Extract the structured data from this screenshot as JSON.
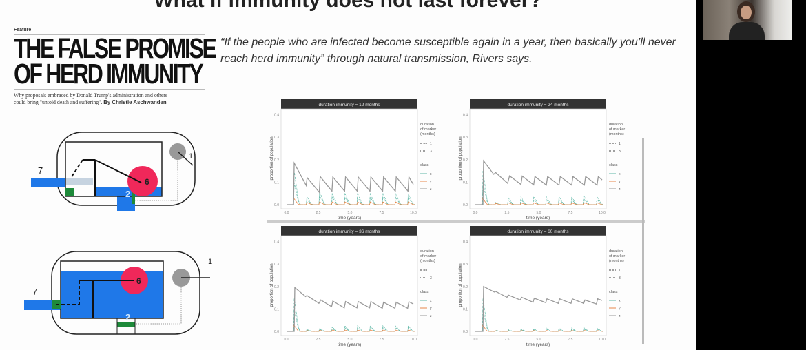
{
  "slide": {
    "title": "What if immunity does not last forever?",
    "article": {
      "kicker": "Feature",
      "headline_line1": "THE FALSE PROMISE",
      "headline_line2": "OF HERD IMMUNITY",
      "subtitle_line1": "Why proposals embraced by Donald Trump's administration and others",
      "subtitle_line2": "could bring \"untold death and suffering\".",
      "byline": "By Christie Aschwanden"
    },
    "quote": "“If the people who are infected become susceptible again in a year, then basically you’ll never reach herd immunity” through natural transmission, Rivers says.",
    "diagram_labels": {
      "pipe": "7",
      "float": "6",
      "valve": "1",
      "outlet": "2"
    },
    "colors": {
      "water": "#1f78e8",
      "float": "#f0285a",
      "valve": "#999999",
      "seal": "#1e8a3a"
    }
  },
  "video": {
    "participant": "presenter webcam"
  },
  "chart_legend": {
    "marker_title": [
      "duration",
      "of marker",
      "(months)"
    ],
    "marker_items": [
      "1",
      "3"
    ],
    "class_title": "class",
    "class_items": [
      "x",
      "y",
      "z"
    ],
    "class_colors": {
      "x": "#5fb8a8",
      "y": "#e8884a",
      "z": "#999999"
    }
  },
  "chart_data": [
    {
      "type": "line",
      "title": "duration immunity = 12 months",
      "xlabel": "time (years)",
      "ylabel": "proportion of population",
      "xlim": [
        0,
        10
      ],
      "ylim": [
        0,
        0.42
      ],
      "xticks": [
        "0.0",
        "2.5",
        "5.0",
        "7.5",
        "10.0"
      ],
      "yticks": [
        "0.0",
        "0.1",
        "0.2",
        "0.3",
        "0.4"
      ],
      "z": [
        [
          0,
          0
        ],
        [
          0.55,
          0
        ],
        [
          0.6,
          0.185
        ],
        [
          1.55,
          0.085
        ],
        [
          1.62,
          0.12
        ],
        [
          2.58,
          0.055
        ],
        [
          2.65,
          0.125
        ],
        [
          3.58,
          0.06
        ],
        [
          3.65,
          0.123
        ],
        [
          4.58,
          0.06
        ],
        [
          4.65,
          0.123
        ],
        [
          5.58,
          0.06
        ],
        [
          5.65,
          0.123
        ],
        [
          6.58,
          0.06
        ],
        [
          6.65,
          0.123
        ],
        [
          7.58,
          0.06
        ],
        [
          7.65,
          0.123
        ],
        [
          8.58,
          0.06
        ],
        [
          8.65,
          0.123
        ],
        [
          9.58,
          0.06
        ],
        [
          9.65,
          0.123
        ],
        [
          10,
          0.09
        ]
      ],
      "x_peaks": [
        [
          0.6,
          0.15
        ],
        [
          1.6,
          0.035
        ],
        [
          2.6,
          0.06
        ],
        [
          3.6,
          0.05
        ],
        [
          4.6,
          0.05
        ],
        [
          5.6,
          0.05
        ],
        [
          6.6,
          0.05
        ],
        [
          7.6,
          0.05
        ],
        [
          8.6,
          0.05
        ],
        [
          9.6,
          0.05
        ]
      ],
      "y_peaks": [
        [
          0.55,
          0.03
        ],
        [
          1.6,
          0.01
        ],
        [
          2.6,
          0.012
        ],
        [
          3.6,
          0.012
        ],
        [
          4.6,
          0.012
        ],
        [
          5.6,
          0.012
        ],
        [
          6.6,
          0.012
        ],
        [
          7.6,
          0.012
        ],
        [
          8.6,
          0.012
        ],
        [
          9.6,
          0.012
        ]
      ]
    },
    {
      "type": "line",
      "title": "duration immunity = 24 months",
      "xlabel": "time (years)",
      "ylabel": "proportion of population",
      "xlim": [
        0,
        10
      ],
      "ylim": [
        0,
        0.42
      ],
      "xticks": [
        "0.0",
        "2.5",
        "5.0",
        "7.5",
        "10.0"
      ],
      "yticks": [
        "0.0",
        "0.1",
        "0.2",
        "0.3",
        "0.4"
      ],
      "z": [
        [
          0,
          0
        ],
        [
          0.6,
          0
        ],
        [
          0.65,
          0.195
        ],
        [
          1.45,
          0.135
        ],
        [
          1.6,
          0.143
        ],
        [
          2.55,
          0.095
        ],
        [
          2.7,
          0.128
        ],
        [
          3.6,
          0.09
        ],
        [
          3.7,
          0.127
        ],
        [
          4.6,
          0.088
        ],
        [
          4.7,
          0.125
        ],
        [
          5.6,
          0.087
        ],
        [
          5.7,
          0.125
        ],
        [
          6.6,
          0.087
        ],
        [
          6.7,
          0.125
        ],
        [
          7.6,
          0.087
        ],
        [
          7.7,
          0.125
        ],
        [
          8.6,
          0.087
        ],
        [
          8.7,
          0.125
        ],
        [
          9.6,
          0.087
        ],
        [
          9.7,
          0.125
        ],
        [
          10,
          0.11
        ]
      ],
      "x_peaks": [
        [
          0.6,
          0.15
        ],
        [
          1.6,
          0.01
        ],
        [
          2.6,
          0.03
        ],
        [
          3.6,
          0.035
        ],
        [
          4.6,
          0.035
        ],
        [
          5.6,
          0.035
        ],
        [
          6.6,
          0.035
        ],
        [
          7.6,
          0.035
        ],
        [
          8.6,
          0.035
        ],
        [
          9.6,
          0.035
        ]
      ],
      "y_peaks": [
        [
          0.55,
          0.03
        ],
        [
          1.6,
          0.005
        ],
        [
          2.6,
          0.008
        ],
        [
          3.6,
          0.008
        ],
        [
          4.6,
          0.008
        ],
        [
          5.6,
          0.008
        ],
        [
          6.6,
          0.008
        ],
        [
          7.6,
          0.008
        ],
        [
          8.6,
          0.008
        ],
        [
          9.6,
          0.008
        ]
      ]
    },
    {
      "type": "line",
      "title": "duration immunity = 36 months",
      "xlabel": "time (years)",
      "ylabel": "proportion of population",
      "xlim": [
        0,
        10
      ],
      "ylim": [
        0,
        0.42
      ],
      "xticks": [
        "0.0",
        "2.5",
        "5.0",
        "7.5",
        "10.0"
      ],
      "yticks": [
        "0.0",
        "0.1",
        "0.2",
        "0.3",
        "0.4"
      ],
      "z": [
        [
          0,
          0
        ],
        [
          0.6,
          0
        ],
        [
          0.65,
          0.195
        ],
        [
          1.5,
          0.155
        ],
        [
          1.6,
          0.16
        ],
        [
          2.55,
          0.125
        ],
        [
          2.7,
          0.14
        ],
        [
          3.55,
          0.11
        ],
        [
          3.65,
          0.135
        ],
        [
          4.55,
          0.105
        ],
        [
          4.65,
          0.133
        ],
        [
          5.55,
          0.105
        ],
        [
          5.65,
          0.133
        ],
        [
          6.55,
          0.105
        ],
        [
          6.65,
          0.133
        ],
        [
          7.55,
          0.103
        ],
        [
          7.65,
          0.13
        ],
        [
          8.55,
          0.103
        ],
        [
          8.65,
          0.13
        ],
        [
          9.55,
          0.103
        ],
        [
          9.65,
          0.132
        ],
        [
          10,
          0.122
        ]
      ],
      "x_peaks": [
        [
          0.6,
          0.15
        ],
        [
          1.6,
          0.01
        ],
        [
          2.6,
          0.015
        ],
        [
          3.6,
          0.02
        ],
        [
          4.6,
          0.025
        ],
        [
          5.6,
          0.025
        ],
        [
          6.6,
          0.025
        ],
        [
          7.6,
          0.025
        ],
        [
          8.6,
          0.025
        ],
        [
          9.6,
          0.025
        ]
      ],
      "y_peaks": [
        [
          0.55,
          0.03
        ],
        [
          1.6,
          0.004
        ],
        [
          2.6,
          0.005
        ],
        [
          3.6,
          0.006
        ],
        [
          4.6,
          0.006
        ],
        [
          5.6,
          0.006
        ],
        [
          6.6,
          0.006
        ],
        [
          7.6,
          0.006
        ],
        [
          8.6,
          0.006
        ],
        [
          9.6,
          0.006
        ]
      ]
    },
    {
      "type": "line",
      "title": "duration immunity = 60 months",
      "xlabel": "time (years)",
      "ylabel": "proportion of population",
      "xlim": [
        0,
        10
      ],
      "ylim": [
        0,
        0.42
      ],
      "xticks": [
        "0.0",
        "2.5",
        "5.0",
        "7.5",
        "10.0"
      ],
      "yticks": [
        "0.0",
        "0.1",
        "0.2",
        "0.3",
        "0.4"
      ],
      "z": [
        [
          0,
          0
        ],
        [
          0.6,
          0
        ],
        [
          0.65,
          0.2
        ],
        [
          1.5,
          0.175
        ],
        [
          1.6,
          0.178
        ],
        [
          2.5,
          0.152
        ],
        [
          2.6,
          0.162
        ],
        [
          3.55,
          0.14
        ],
        [
          3.65,
          0.152
        ],
        [
          4.55,
          0.13
        ],
        [
          4.65,
          0.148
        ],
        [
          5.55,
          0.128
        ],
        [
          5.65,
          0.145
        ],
        [
          6.55,
          0.125
        ],
        [
          6.65,
          0.145
        ],
        [
          7.55,
          0.125
        ],
        [
          7.65,
          0.145
        ],
        [
          8.55,
          0.125
        ],
        [
          8.65,
          0.14
        ],
        [
          9.55,
          0.122
        ],
        [
          9.65,
          0.145
        ],
        [
          10,
          0.138
        ]
      ],
      "x_peaks": [
        [
          0.6,
          0.15
        ],
        [
          1.6,
          0.005
        ],
        [
          2.6,
          0.008
        ],
        [
          3.6,
          0.01
        ],
        [
          4.6,
          0.012
        ],
        [
          5.6,
          0.015
        ],
        [
          6.6,
          0.015
        ],
        [
          7.6,
          0.015
        ],
        [
          8.6,
          0.015
        ],
        [
          9.6,
          0.015
        ]
      ],
      "y_peaks": [
        [
          0.55,
          0.03
        ],
        [
          1.6,
          0.003
        ],
        [
          2.6,
          0.003
        ],
        [
          3.6,
          0.004
        ],
        [
          4.6,
          0.004
        ],
        [
          5.6,
          0.004
        ],
        [
          6.6,
          0.004
        ],
        [
          7.6,
          0.004
        ],
        [
          8.6,
          0.004
        ],
        [
          9.6,
          0.004
        ]
      ]
    }
  ]
}
